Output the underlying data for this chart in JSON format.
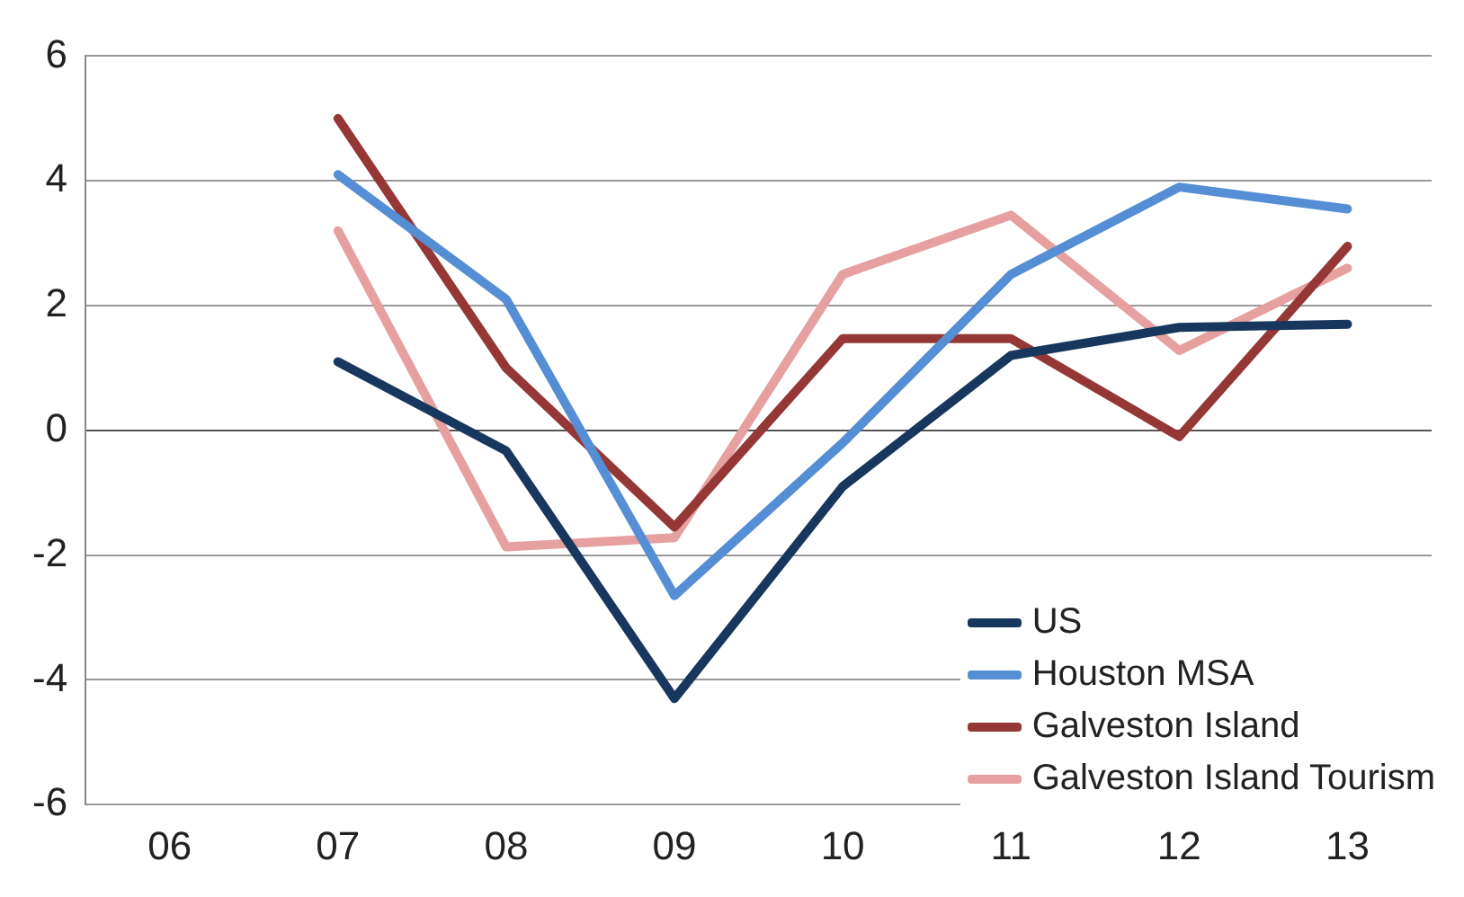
{
  "chart_data": {
    "type": "line",
    "categories": [
      "06",
      "07",
      "08",
      "09",
      "10",
      "11",
      "12",
      "13"
    ],
    "series": [
      {
        "name": "US",
        "color": "#17375e",
        "values": [
          null,
          1.1,
          -0.33,
          -4.3,
          -0.9,
          1.2,
          1.65,
          1.7
        ]
      },
      {
        "name": "Houston MSA",
        "color": "#558ed5",
        "values": [
          null,
          4.1,
          2.1,
          -2.65,
          -0.2,
          2.5,
          3.9,
          3.55
        ]
      },
      {
        "name": "Galveston Island",
        "color": "#953735",
        "values": [
          null,
          5.0,
          1.0,
          -1.55,
          1.47,
          1.47,
          -0.1,
          2.95
        ]
      },
      {
        "name": "Galveston Island Tourism",
        "color": "#e6a0a0",
        "values": [
          null,
          3.2,
          -1.87,
          -1.72,
          2.5,
          3.45,
          1.28,
          2.6
        ]
      }
    ],
    "ylim": [
      -6,
      6
    ],
    "yticks": [
      -6,
      -4,
      -2,
      0,
      2,
      4,
      6
    ],
    "grid": "y",
    "legend": "bottom right",
    "marker": "none",
    "line_style": "solid"
  }
}
